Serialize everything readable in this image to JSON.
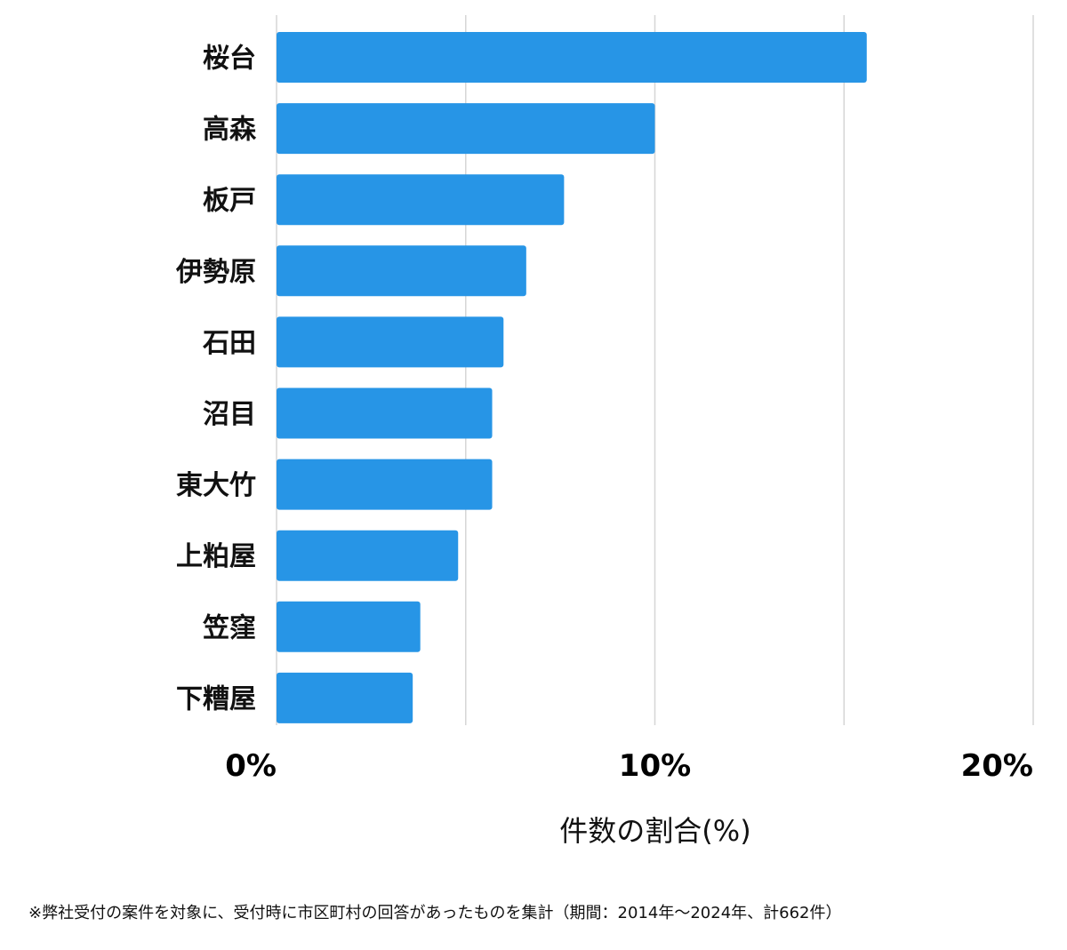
{
  "chart_data": {
    "type": "bar",
    "orientation": "horizontal",
    "categories": [
      "桜台",
      "高森",
      "板戸",
      "伊勢原",
      "石田",
      "沼目",
      "東大竹",
      "上粕屋",
      "笠窪",
      "下糟屋"
    ],
    "values": [
      15.6,
      10.0,
      7.6,
      6.6,
      6.0,
      5.7,
      5.7,
      4.8,
      3.8,
      3.6
    ],
    "xlim": [
      0,
      20
    ],
    "xticks": [
      0,
      10,
      20
    ],
    "xtick_labels": [
      "0%",
      "10%",
      "20%"
    ],
    "xlabel": "件数の割合(%)",
    "ylabel": "",
    "title": "",
    "grid": true,
    "bar_color": "#2795e6"
  },
  "footnote": "※弊社受付の案件を対象に、受付時に市区町村の回答があったものを集計（期間：2014年～2024年、計662件）"
}
